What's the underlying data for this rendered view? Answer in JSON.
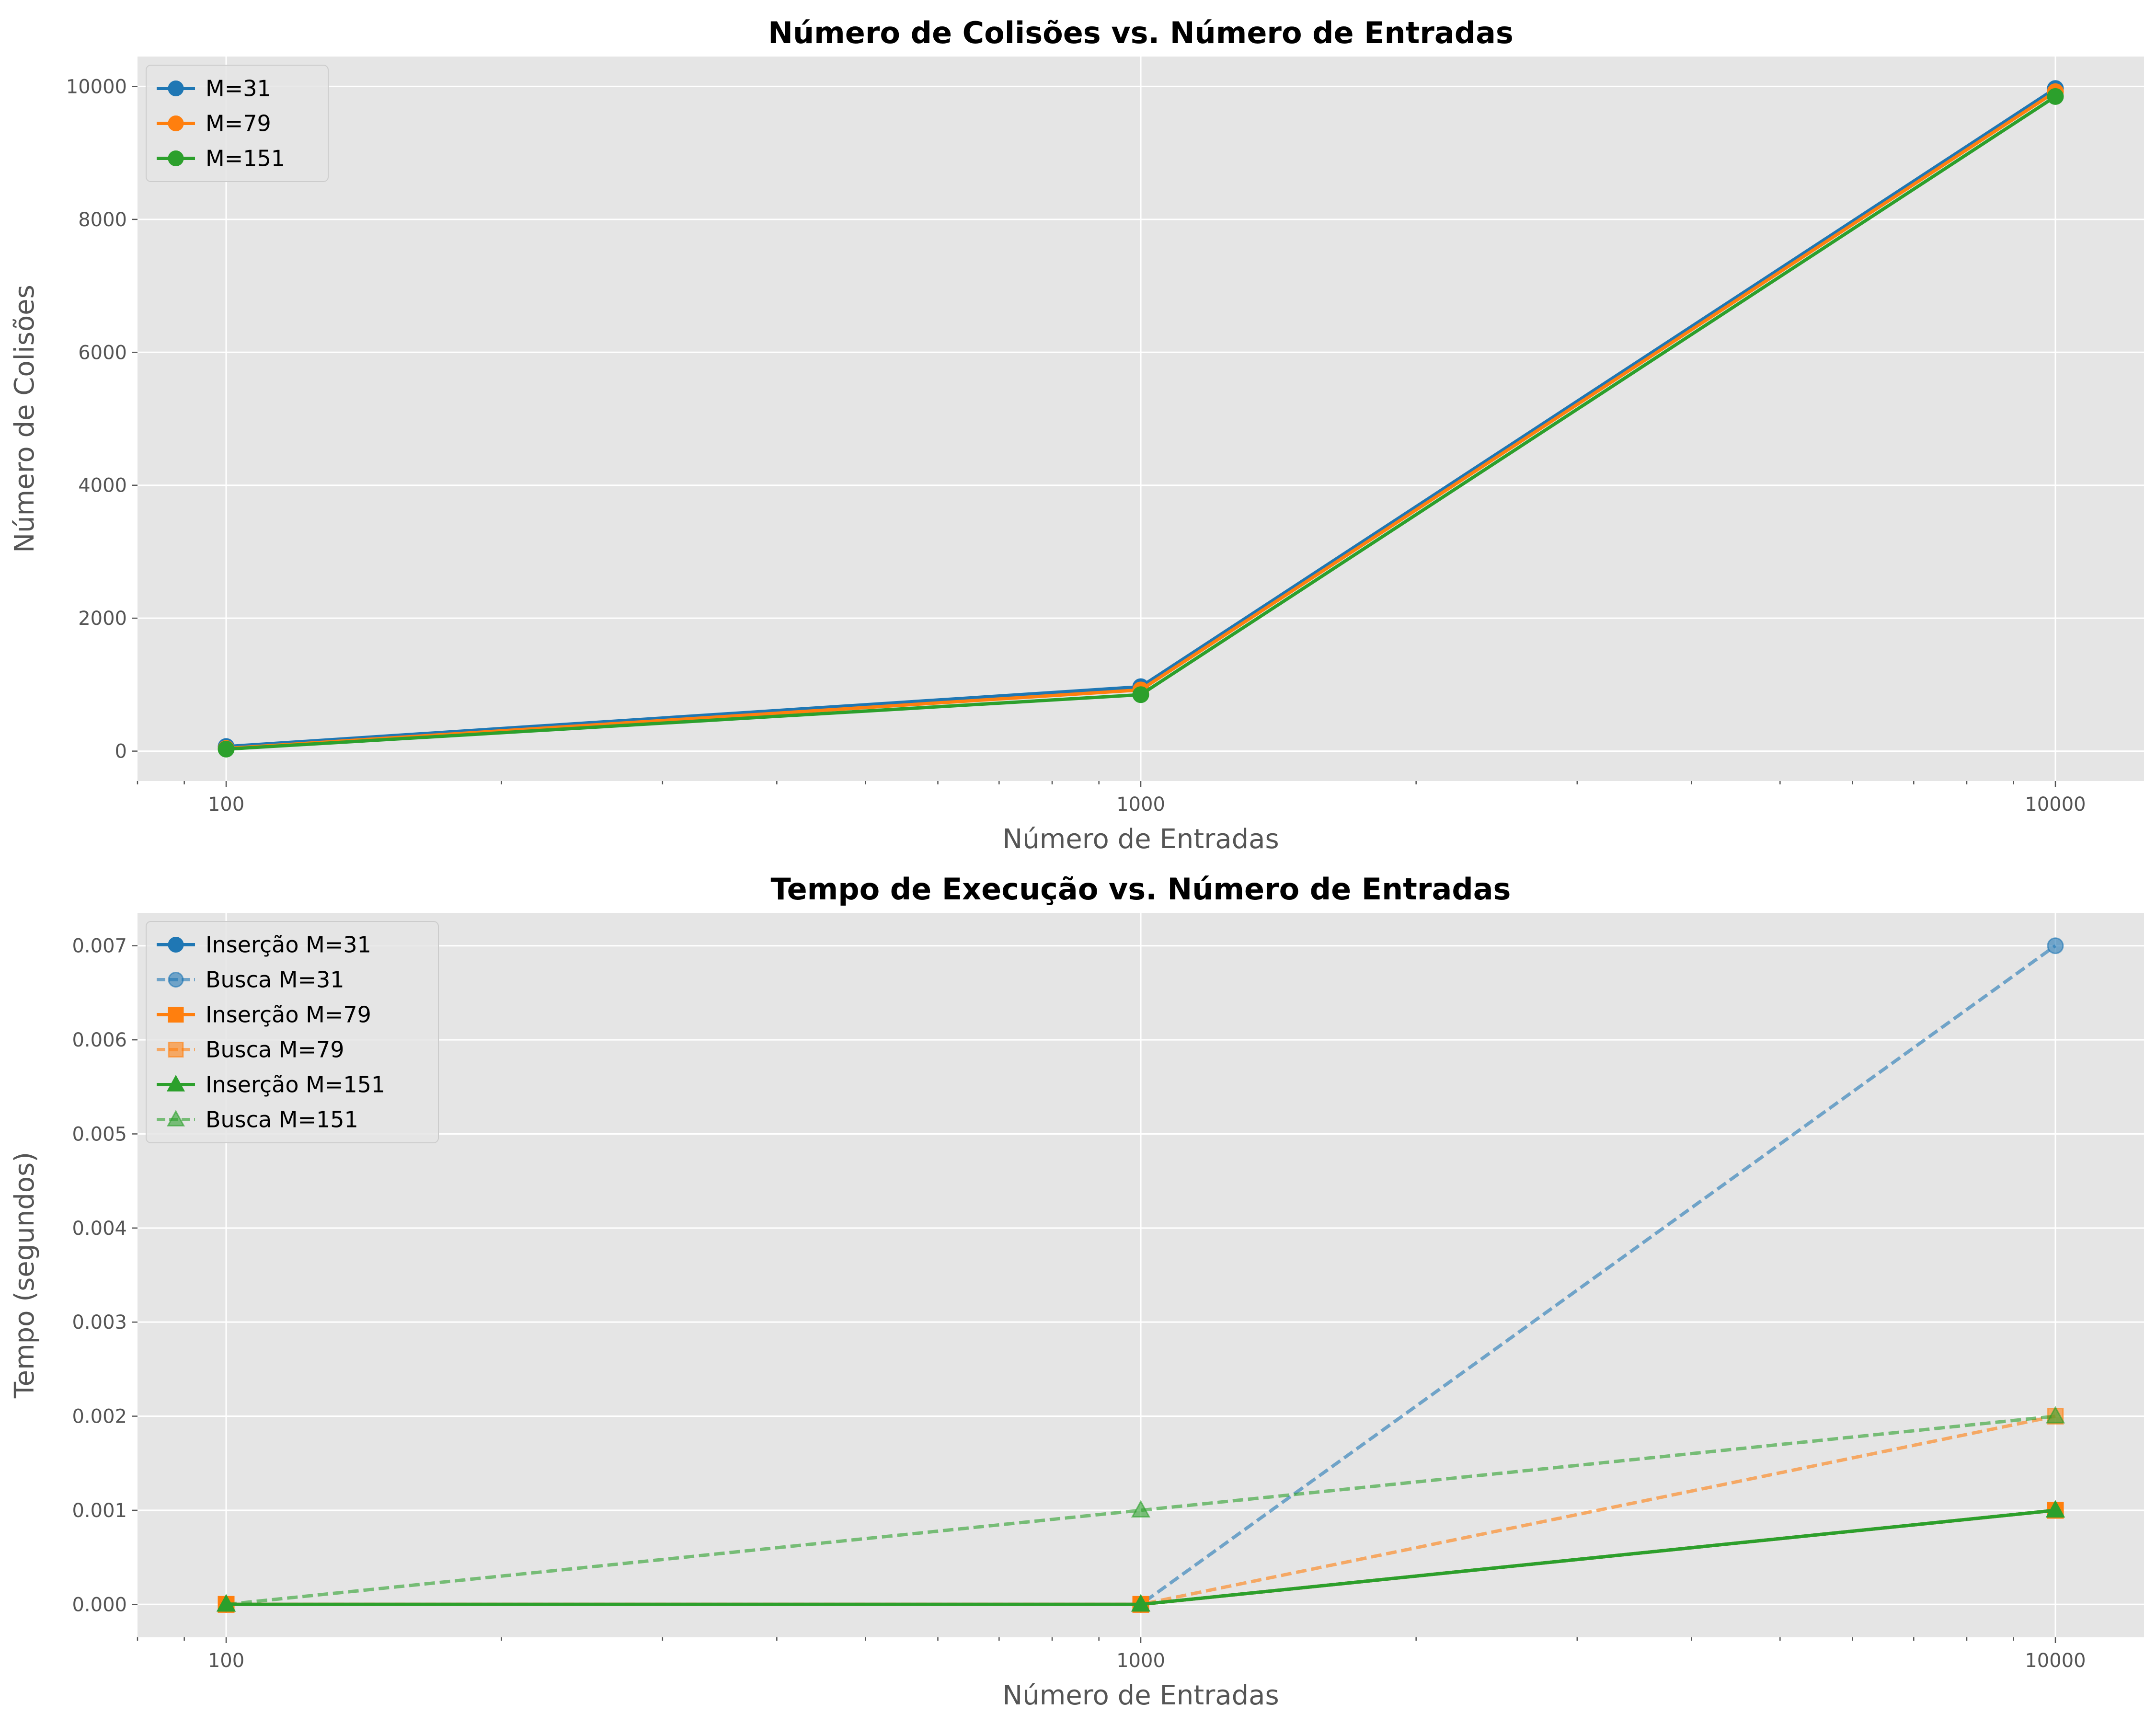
{
  "colors": {
    "background": "#ffffff",
    "panel": "#e5e5e5",
    "grid": "#ffffff",
    "series": [
      "#1f77b4",
      "#ff7f0e",
      "#2ca02c"
    ]
  },
  "chart_data": [
    {
      "type": "line",
      "title": "Número de Colisões vs. Número de Entradas",
      "xlabel": "Número de Entradas",
      "ylabel": "Número de Colisões",
      "xscale": "log",
      "xlim": [
        80,
        12500
      ],
      "ylim": [
        -450,
        10450
      ],
      "xticks": [
        100,
        1000,
        10000
      ],
      "xtick_labels": [
        "100",
        "1000",
        "10000"
      ],
      "yticks": [
        0,
        2000,
        4000,
        6000,
        8000,
        10000
      ],
      "ytick_labels": [
        "0",
        "2000",
        "4000",
        "6000",
        "8000",
        "10000"
      ],
      "grid": true,
      "legend_position": "upper left",
      "x": [
        100,
        1000,
        10000
      ],
      "series": [
        {
          "name": "M=31",
          "values": [
            69,
            969,
            9969
          ],
          "color": "#1f77b4",
          "linestyle": "solid",
          "marker": "circle",
          "alpha": 1
        },
        {
          "name": "M=79",
          "values": [
            40,
            921,
            9921
          ],
          "color": "#ff7f0e",
          "linestyle": "solid",
          "marker": "circle",
          "alpha": 1
        },
        {
          "name": "M=151",
          "values": [
            30,
            849,
            9849
          ],
          "color": "#2ca02c",
          "linestyle": "solid",
          "marker": "circle",
          "alpha": 1
        }
      ]
    },
    {
      "type": "line",
      "title": "Tempo de Execução vs. Número de Entradas",
      "xlabel": "Número de Entradas",
      "ylabel": "Tempo (segundos)",
      "xscale": "log",
      "xlim": [
        80,
        12500
      ],
      "ylim": [
        -0.00035,
        0.00735
      ],
      "xticks": [
        100,
        1000,
        10000
      ],
      "xtick_labels": [
        "100",
        "1000",
        "10000"
      ],
      "yticks": [
        0,
        0.001,
        0.002,
        0.003,
        0.004,
        0.005,
        0.006,
        0.007
      ],
      "ytick_labels": [
        "0.000",
        "0.001",
        "0.002",
        "0.003",
        "0.004",
        "0.005",
        "0.006",
        "0.007"
      ],
      "grid": true,
      "legend_position": "upper left",
      "x": [
        100,
        1000,
        10000
      ],
      "series": [
        {
          "name": "Inserção M=31",
          "values": [
            0,
            0,
            0.001
          ],
          "color": "#1f77b4",
          "linestyle": "solid",
          "marker": "circle",
          "alpha": 1
        },
        {
          "name": "Busca M=31",
          "values": [
            0,
            0,
            0.007
          ],
          "color": "#1f77b4",
          "linestyle": "dashed",
          "marker": "circle",
          "alpha": 0.6
        },
        {
          "name": "Inserção M=79",
          "values": [
            0,
            0,
            0.001
          ],
          "color": "#ff7f0e",
          "linestyle": "solid",
          "marker": "square",
          "alpha": 1
        },
        {
          "name": "Busca M=79",
          "values": [
            0,
            0,
            0.002
          ],
          "color": "#ff7f0e",
          "linestyle": "dashed",
          "marker": "square",
          "alpha": 0.6
        },
        {
          "name": "Inserção M=151",
          "values": [
            0,
            0,
            0.001
          ],
          "color": "#2ca02c",
          "linestyle": "solid",
          "marker": "triangle",
          "alpha": 1
        },
        {
          "name": "Busca M=151",
          "values": [
            0,
            0.001,
            0.002
          ],
          "color": "#2ca02c",
          "linestyle": "dashed",
          "marker": "triangle",
          "alpha": 0.6
        }
      ]
    }
  ]
}
